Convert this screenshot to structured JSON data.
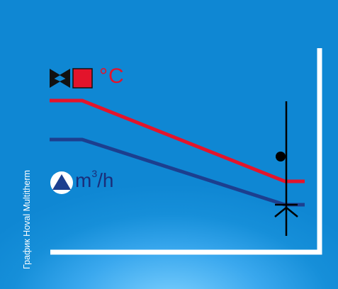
{
  "caption": "График Hoval Multitherm",
  "legend": {
    "temperature": {
      "label": "°C",
      "icon": "valve-with-red-square-icon",
      "color": "#e3142b"
    },
    "flow": {
      "unit_base": "m",
      "unit_superscript": "3",
      "unit_rest": "/h",
      "icon": "pump-triangle-circle-icon",
      "color": "#1a2e7a"
    }
  },
  "colors": {
    "background": "#1190d8",
    "axes": "#ffffff",
    "temperature_line": "#e3142b",
    "flow_line": "#1c3f8f",
    "marker": "#000000"
  }
}
